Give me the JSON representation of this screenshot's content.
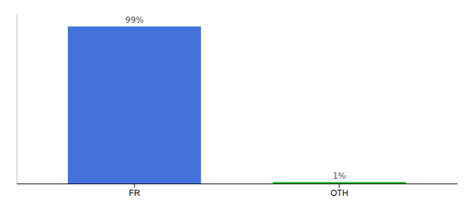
{
  "chart_data": {
    "type": "bar",
    "categories": [
      "FR",
      "OTH"
    ],
    "values": [
      99,
      1
    ],
    "value_labels": [
      "99%",
      "1%"
    ],
    "colors": [
      "#4472db",
      "#2db82d"
    ],
    "ylim": [
      0,
      107
    ],
    "data_labels": true,
    "tick_labels": "x"
  }
}
